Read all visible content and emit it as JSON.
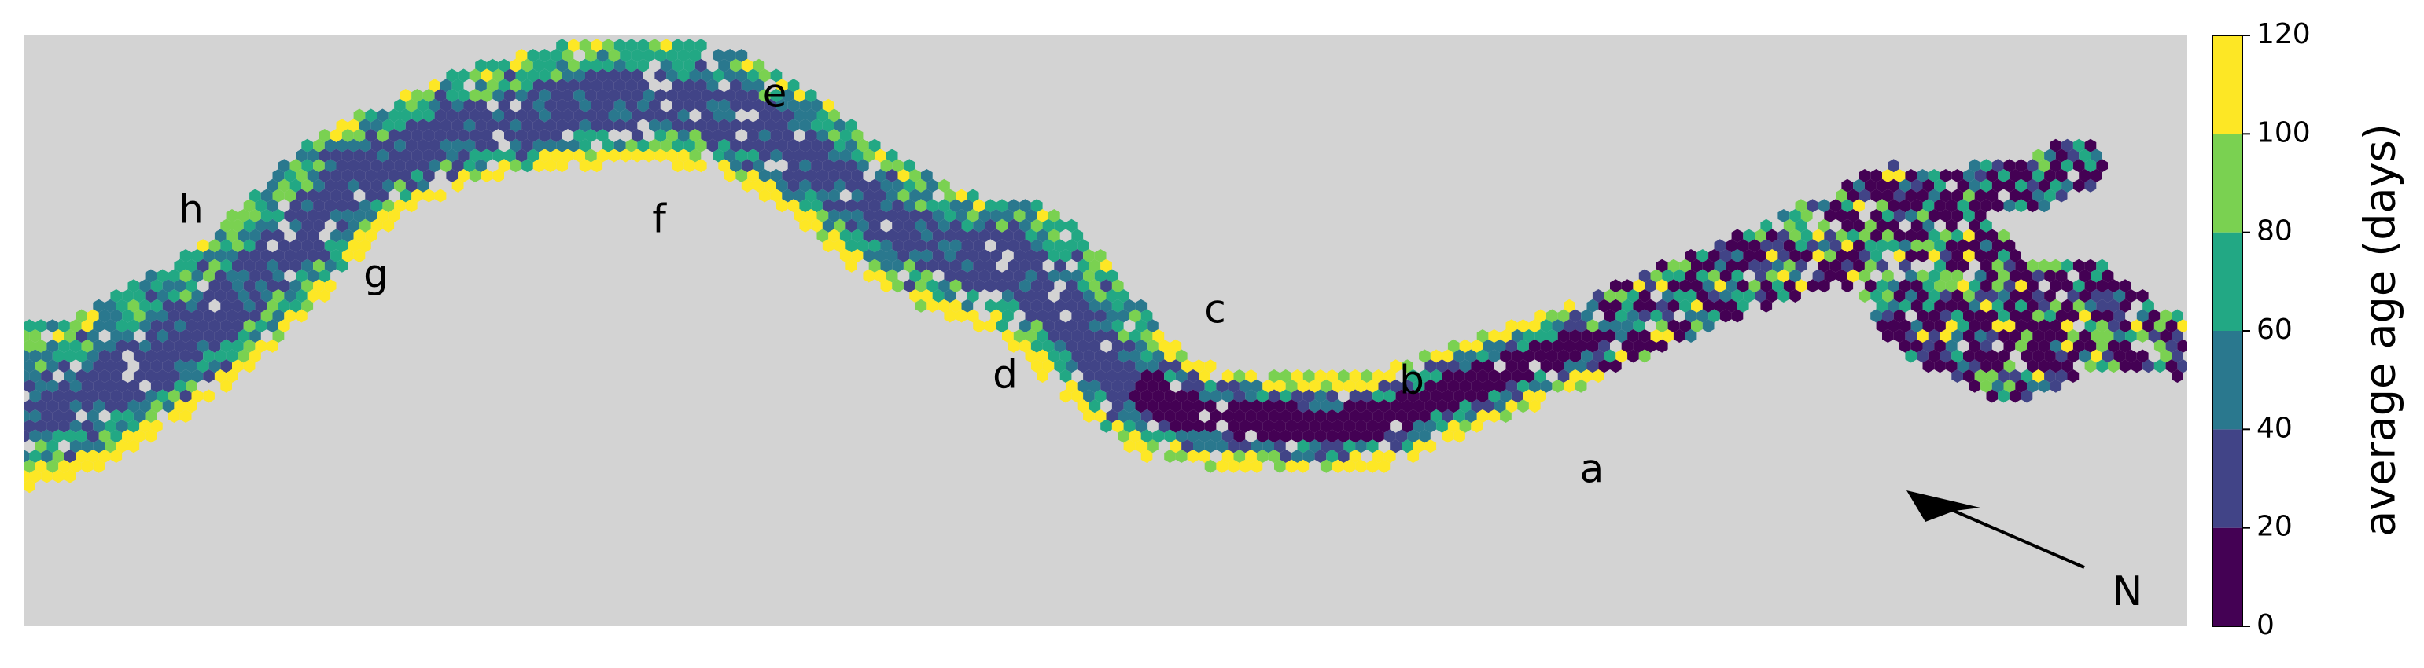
{
  "chart_data": {
    "type": "heatmap",
    "title": "",
    "xlabel": "",
    "ylabel": "",
    "background_color": "#d3d3d3",
    "colormap": "viridis",
    "colorbar": {
      "label": "average age (days)",
      "range": [
        0,
        120
      ],
      "ticks": [
        "0",
        "20",
        "40",
        "60",
        "80",
        "100",
        "120"
      ],
      "bins": [
        {
          "from": 0,
          "to": 20,
          "color": "#440154"
        },
        {
          "from": 20,
          "to": 40,
          "color": "#414487"
        },
        {
          "from": 40,
          "to": 60,
          "color": "#2a788e"
        },
        {
          "from": 60,
          "to": 80,
          "color": "#22a884"
        },
        {
          "from": 80,
          "to": 100,
          "color": "#7ad151"
        },
        {
          "from": 100,
          "to": 120,
          "color": "#fde725"
        }
      ]
    },
    "annotations": [
      "a",
      "b",
      "c",
      "d",
      "e",
      "f",
      "g",
      "h"
    ],
    "north_arrow": {
      "label": "N",
      "icon": "north-arrow-icon"
    },
    "river_course": {
      "x": [
        0,
        100,
        200,
        300,
        360,
        420,
        480,
        540,
        600,
        660,
        720,
        790,
        850,
        920,
        990,
        1060,
        1120,
        1180,
        1240,
        1300,
        1360,
        1420,
        1480,
        1540,
        1600,
        1680,
        1760,
        1840,
        1920,
        2000,
        2080,
        2160,
        2240,
        2320,
        2400,
        2480,
        2560,
        2640,
        2720,
        2780
      ],
      "y": [
        520,
        505,
        450,
        380,
        320,
        255,
        210,
        185,
        160,
        145,
        135,
        128,
        130,
        140,
        175,
        230,
        275,
        310,
        330,
        340,
        400,
        470,
        515,
        530,
        535,
        540,
        535,
        500,
        470,
        440,
        405,
        370,
        340,
        305,
        300,
        370,
        420,
        400,
        425,
        445
      ],
      "width": [
        110,
        95,
        90,
        80,
        78,
        75,
        72,
        68,
        70,
        74,
        80,
        82,
        80,
        78,
        74,
        70,
        74,
        80,
        84,
        84,
        80,
        74,
        70,
        64,
        62,
        62,
        60,
        58,
        56,
        52,
        50,
        48,
        50,
        56,
        90,
        100,
        90,
        72,
        52,
        36
      ],
      "branch_x": [
        2410,
        2460,
        2520,
        2580,
        2640
      ],
      "branch_y": [
        300,
        255,
        240,
        235,
        210
      ]
    }
  }
}
